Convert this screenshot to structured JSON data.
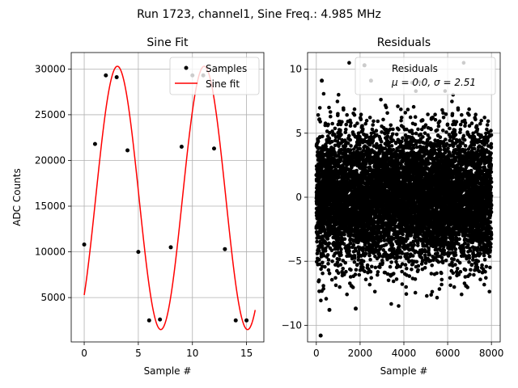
{
  "figure": {
    "suptitle": "Run 1723, channel1, Sine Freq.: 4.985 MHz"
  },
  "chart_data": [
    {
      "type": "line",
      "title": "Sine Fit",
      "xlabel": "Sample #",
      "ylabel": "ADC Counts",
      "xlim": [
        -1.2,
        16.6
      ],
      "ylim": [
        150,
        31800
      ],
      "xticks": [
        0,
        5,
        10,
        15
      ],
      "yticks": [
        5000,
        10000,
        15000,
        20000,
        25000,
        30000
      ],
      "grid": true,
      "legend_position": "upper-right",
      "series": [
        {
          "name": "Samples",
          "kind": "scatter",
          "color": "#000000",
          "x": [
            0,
            1,
            2,
            3,
            4,
            5,
            6,
            7,
            8,
            9,
            10,
            11,
            12,
            13,
            14,
            15
          ],
          "y": [
            10800,
            21800,
            29300,
            29100,
            21100,
            10000,
            2500,
            2600,
            10500,
            21500,
            29300,
            29300,
            21300,
            10300,
            2500,
            2500
          ]
        },
        {
          "name": "Sine fit",
          "kind": "line",
          "color": "#ff0000",
          "function": {
            "offset": 15900,
            "amplitude": 14400,
            "period": 8.02,
            "phase": -0.83,
            "x_range": [
              0,
              15.8
            ]
          }
        }
      ]
    },
    {
      "type": "scatter",
      "title": "Residuals",
      "xlabel": "Sample #",
      "xlim": [
        -400,
        8400
      ],
      "ylim": [
        -11.3,
        11.3
      ],
      "xticks": [
        0,
        2000,
        4000,
        6000,
        8000
      ],
      "yticks": [
        -10,
        -5,
        0,
        5,
        10
      ],
      "grid": true,
      "legend_position": "upper-right",
      "series": [
        {
          "name": "Residuals",
          "kind": "scatter",
          "color": "#000000",
          "distribution": {
            "n": 8000,
            "mean": 0.0,
            "std": 2.51,
            "x_range": [
              0,
              8000
            ]
          },
          "highlighted_points": [
            {
              "x": 200,
              "y": -10.8
            },
            {
              "x": 2200,
              "y": 10.3
            },
            {
              "x": 2500,
              "y": 9.1
            },
            {
              "x": 250,
              "y": 9.1
            },
            {
              "x": 1800,
              "y": -8.7
            },
            {
              "x": 600,
              "y": -8.8
            }
          ]
        }
      ],
      "legend_stats": {
        "mu_label": "μ = 0.0, ",
        "sigma_label": "σ = 2.51"
      }
    }
  ]
}
